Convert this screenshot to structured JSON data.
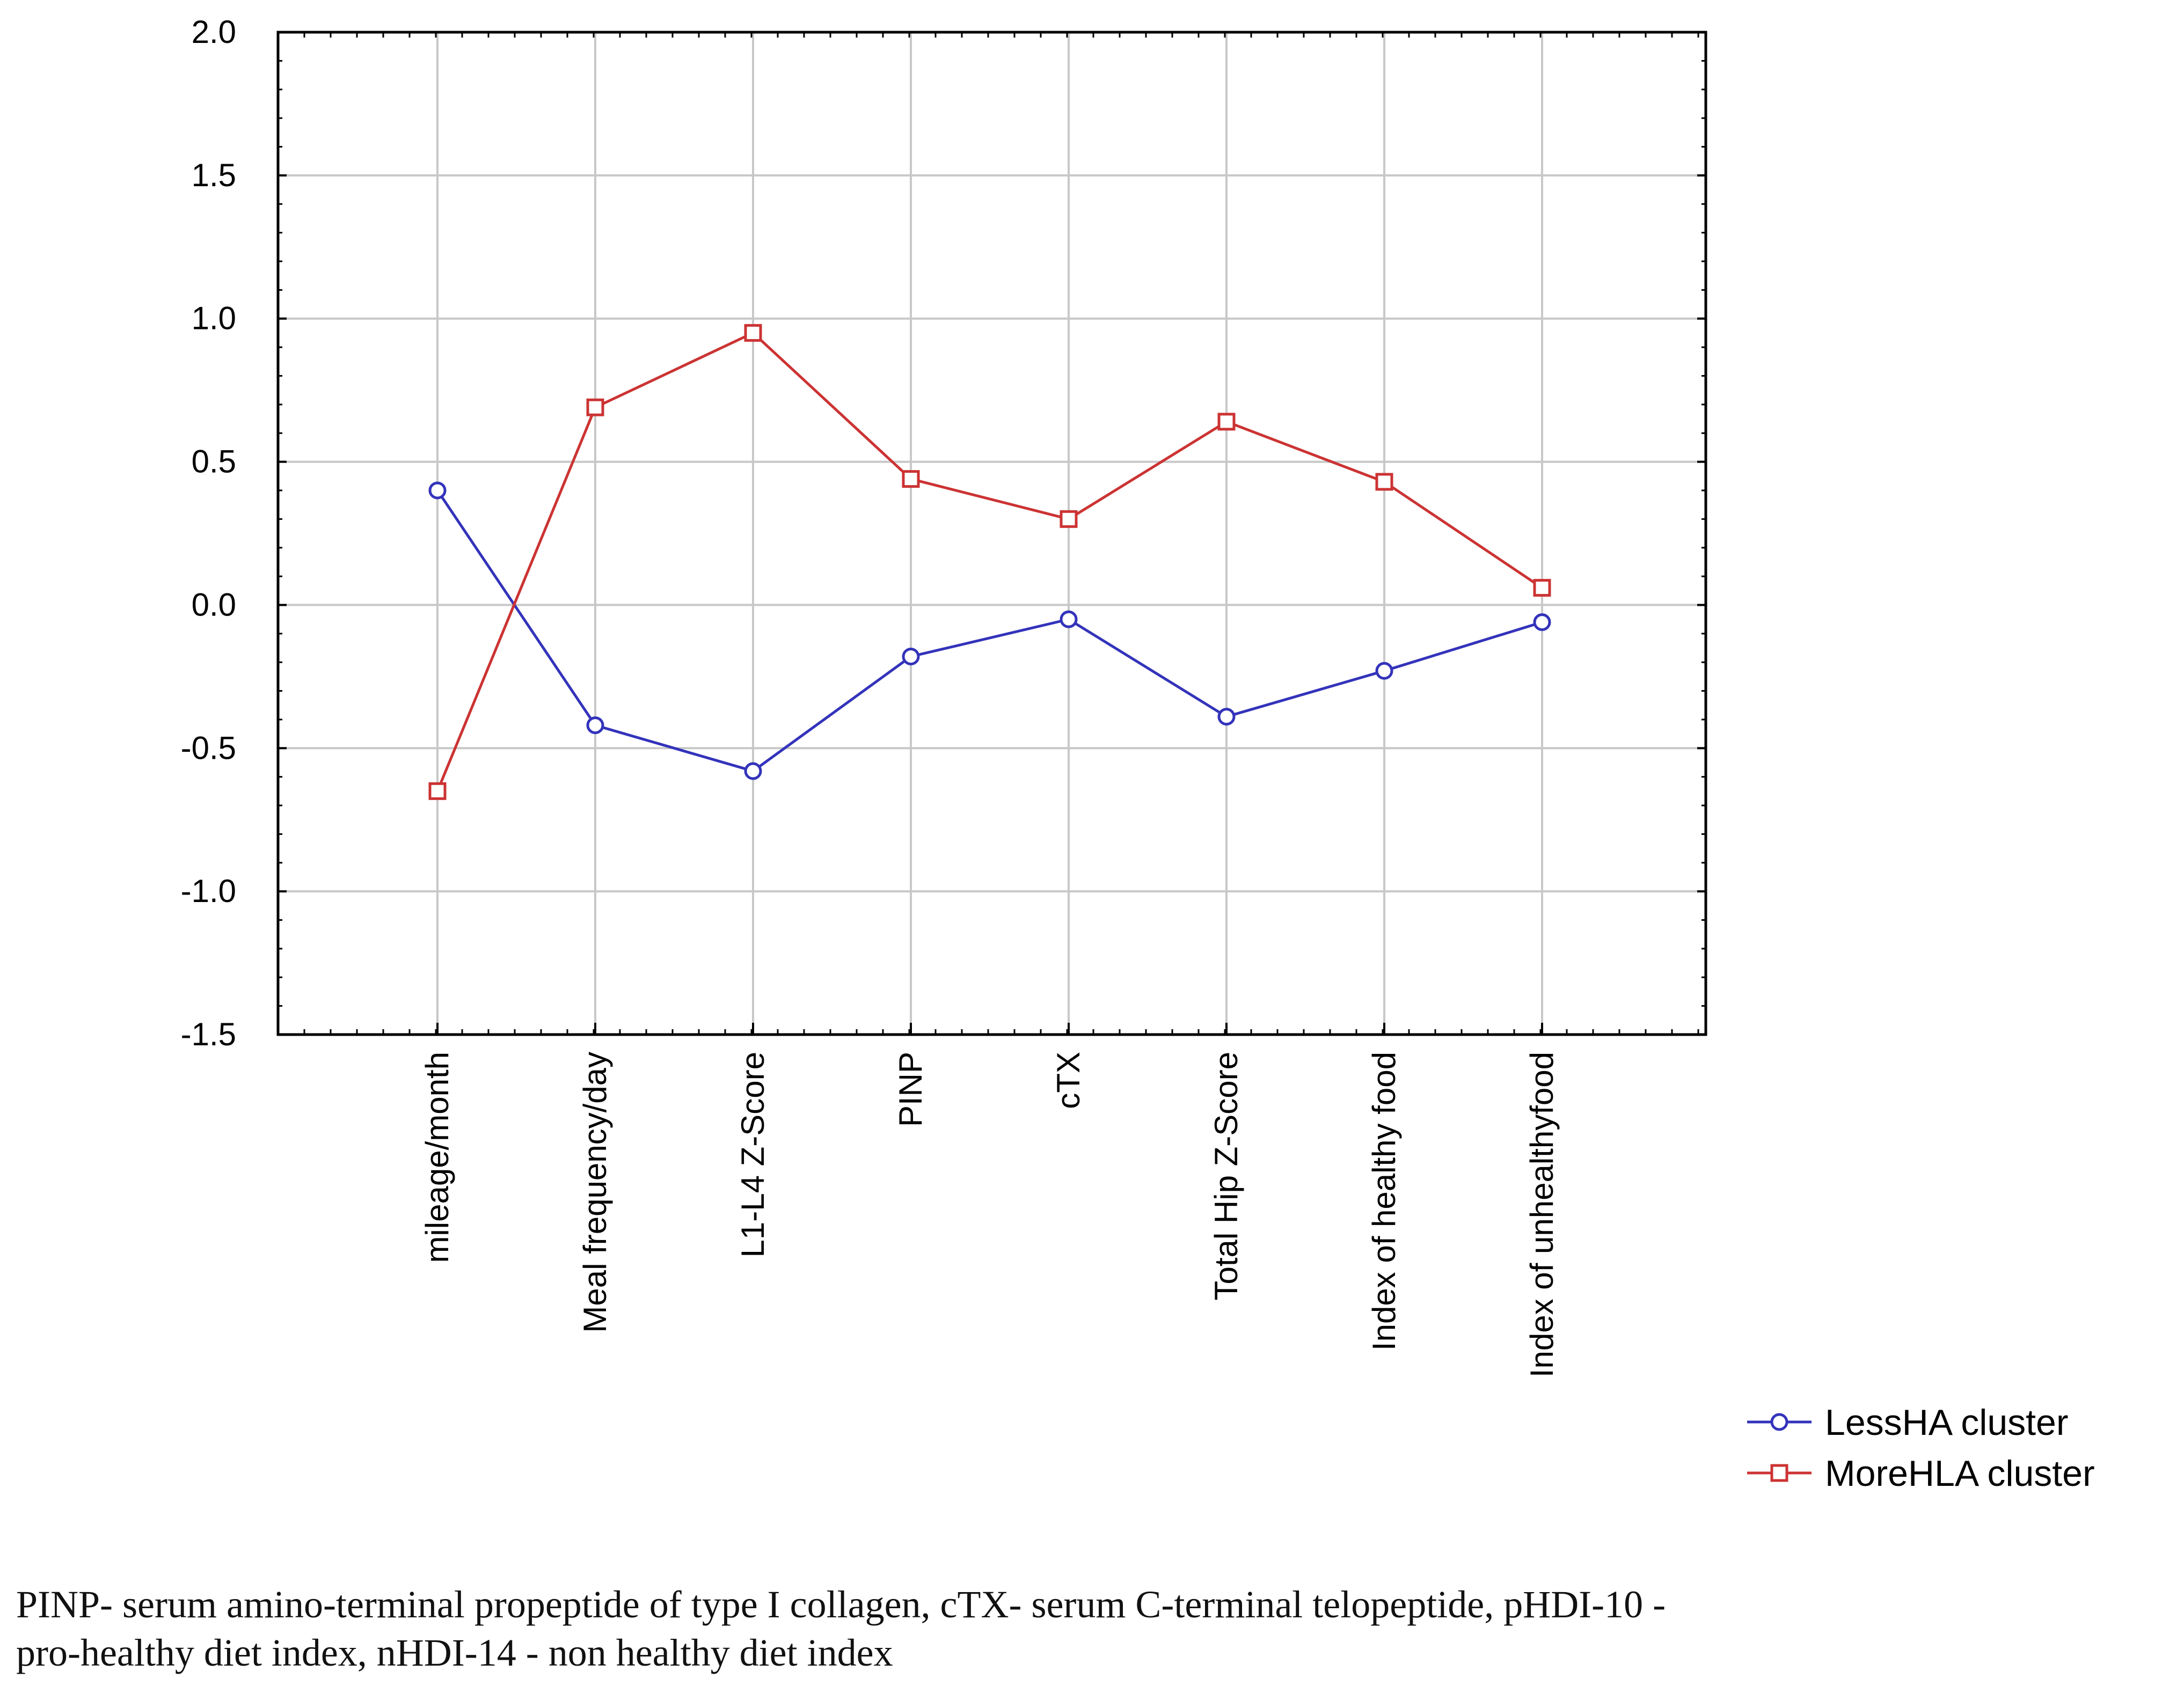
{
  "chart_data": {
    "type": "line",
    "title": "",
    "xlabel": "",
    "ylabel": "",
    "ylim": [
      -1.5,
      2.0
    ],
    "yticks": [
      -1.5,
      -1.0,
      -0.5,
      0.0,
      0.5,
      1.0,
      1.5,
      2.0
    ],
    "ytick_labels": [
      "-1.5",
      "-1.0",
      "-0.5",
      "0.0",
      "0.5",
      "1.0",
      "1.5",
      "2.0"
    ],
    "grid": true,
    "legend_position": "bottom-right",
    "categories": [
      "mileage/month",
      "Meal frequency/day",
      "L1-L4 Z-Score",
      "PINP",
      "cTX",
      "Total Hip  Z-Score",
      "Index of healthy food",
      "Index of unhealthyfood"
    ],
    "series": [
      {
        "name": "LessHA cluster",
        "color": "#3333bb",
        "marker": "circle",
        "values": [
          0.4,
          -0.42,
          -0.58,
          -0.18,
          -0.05,
          -0.39,
          -0.23,
          -0.06
        ]
      },
      {
        "name": "MoreHLA cluster",
        "color": "#cc3333",
        "marker": "square",
        "values": [
          -0.65,
          0.69,
          0.95,
          0.44,
          0.3,
          0.64,
          0.43,
          0.06
        ]
      }
    ]
  },
  "caption": {
    "line1": "PINP- serum amino-terminal propeptide of type I collagen, cTX- serum C-terminal telopeptide, pHDI-10 -",
    "line2": "pro-healthy diet index, nHDI-14 - non healthy diet index"
  }
}
